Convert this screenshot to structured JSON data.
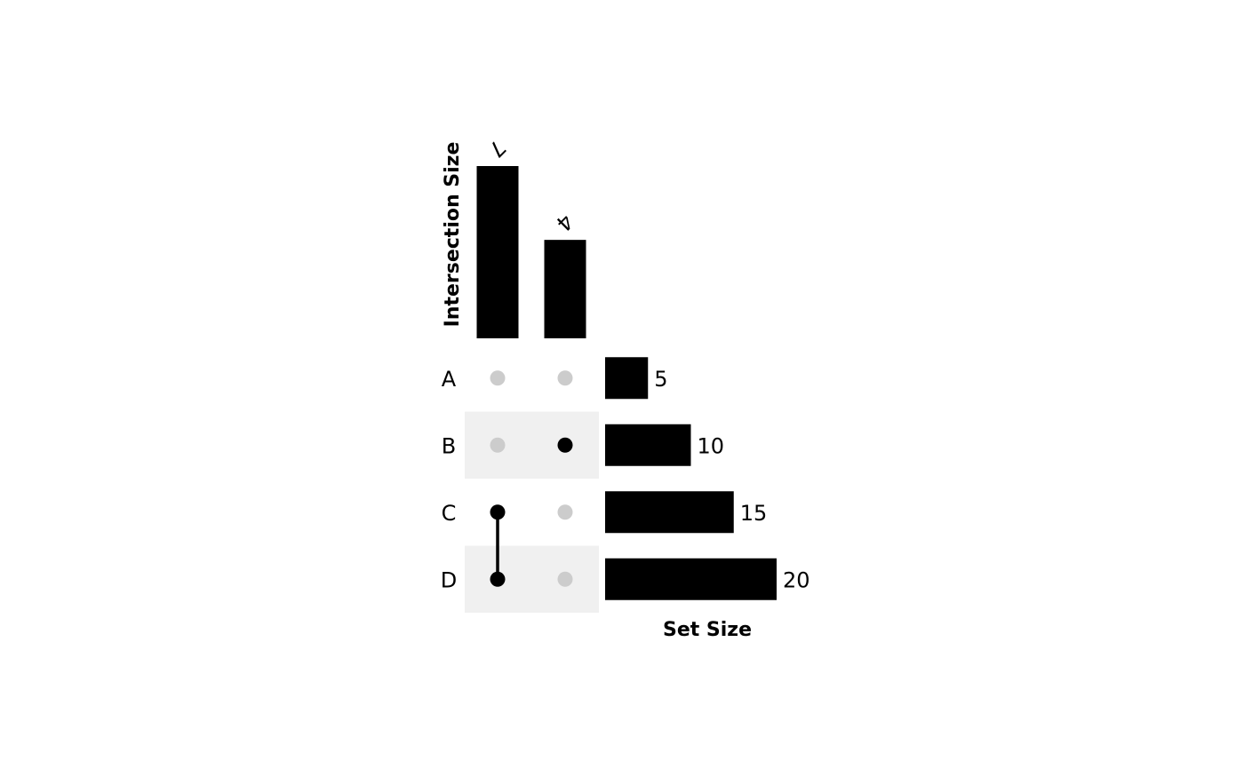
{
  "chart_data": {
    "type": "upset",
    "sets": [
      "A",
      "B",
      "C",
      "D"
    ],
    "set_sizes": [
      5,
      10,
      15,
      20
    ],
    "intersections": [
      {
        "members": [
          "C",
          "D"
        ],
        "size": 7
      },
      {
        "members": [
          "B"
        ],
        "size": 4
      }
    ],
    "intersection_axis_label": "Intersection Size",
    "set_size_axis_label": "Set Size",
    "intersection_ylim": [
      0,
      7
    ],
    "set_size_xlim": [
      0,
      20
    ],
    "colors": {
      "bar": "#000000",
      "active_dot": "#000000",
      "inactive_dot": "#cccccc",
      "stripe": "#f0f0f0"
    }
  }
}
